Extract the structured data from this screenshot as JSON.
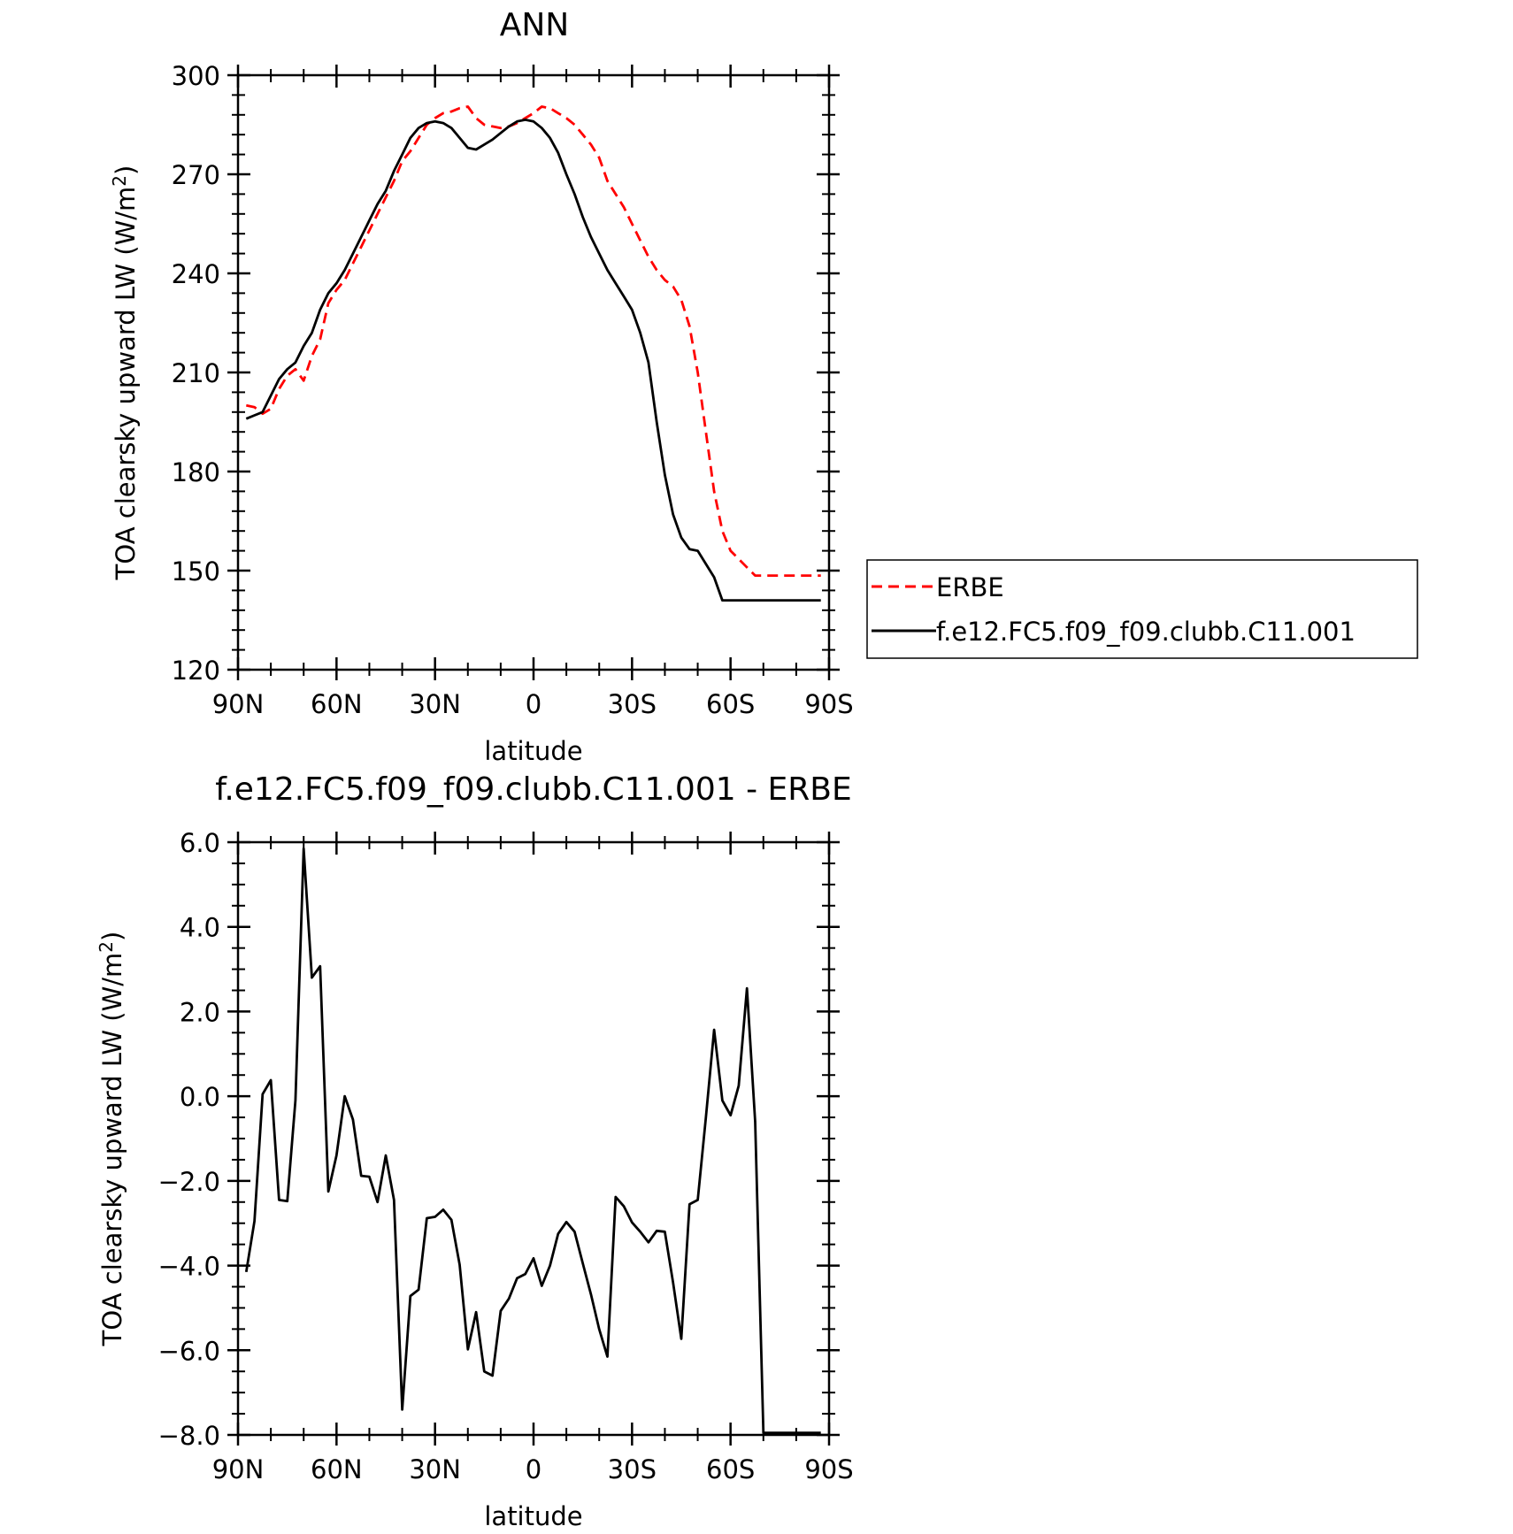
{
  "chart_data": [
    {
      "type": "line",
      "title": "ANN",
      "xlabel": "latitude",
      "ylabel": "TOA clearsky upward LW (W/m²)",
      "xlim": [
        90,
        -90
      ],
      "ylim": [
        120,
        300
      ],
      "xticks": [
        90,
        60,
        30,
        0,
        -30,
        -60,
        -90
      ],
      "xticklabels": [
        "90N",
        "60N",
        "30N",
        "0",
        "30S",
        "60S",
        "90S"
      ],
      "yticks": [
        120,
        150,
        180,
        210,
        240,
        270,
        300
      ],
      "yticklabels": [
        "120",
        "150",
        "180",
        "210",
        "240",
        "270",
        "300"
      ],
      "grid": false,
      "legend": "right",
      "series": [
        {
          "name": "ERBE",
          "color": "#ff0000",
          "dash": "dashed",
          "x": [
            87.5,
            85,
            82.5,
            80,
            77.5,
            75,
            72.5,
            70,
            67.5,
            65,
            62.5,
            60,
            57.5,
            55,
            52.5,
            50,
            47.5,
            45,
            42.5,
            40,
            37.5,
            35,
            32.5,
            30,
            27.5,
            25,
            22.5,
            20,
            17.5,
            15,
            12.5,
            10,
            7.5,
            5,
            2.5,
            0,
            -2.5,
            -5,
            -7.5,
            -10,
            -12.5,
            -15,
            -17.5,
            -20,
            -22.5,
            -25,
            -27.5,
            -30,
            -32.5,
            -35,
            -37.5,
            -40,
            -42.5,
            -45,
            -47.5,
            -50,
            -52.5,
            -55,
            -57.5,
            -60,
            -62.5,
            -65,
            -67.5,
            -70,
            -72.5,
            -75,
            -77.5,
            -80,
            -82.5,
            -85,
            -87.5
          ],
          "y": [
            200,
            199.5,
            197.5,
            199,
            205,
            209,
            211,
            207.5,
            215,
            220,
            231,
            235,
            238,
            243,
            248,
            253,
            258,
            263,
            268,
            274,
            277,
            281,
            285,
            287,
            288.5,
            289,
            290,
            290.5,
            287,
            285,
            284.5,
            284,
            284.5,
            285.5,
            287,
            288.5,
            290.5,
            290,
            288.5,
            287,
            285,
            282,
            279,
            275,
            268,
            264,
            260,
            255,
            250,
            245,
            241,
            238,
            236,
            232,
            224,
            210,
            192,
            174,
            162,
            156,
            153.5,
            151,
            148.5,
            148.5,
            148.5,
            148.5,
            148.5,
            148.5,
            148.5,
            148.5,
            148.5
          ]
        },
        {
          "name": "f.e12.FC5.f09_f09.clubb.C11.001",
          "color": "#000000",
          "dash": "solid",
          "x": [
            87.5,
            85,
            82.5,
            80,
            77.5,
            75,
            72.5,
            70,
            67.5,
            65,
            62.5,
            60,
            57.5,
            55,
            52.5,
            50,
            47.5,
            45,
            42.5,
            40,
            37.5,
            35,
            32.5,
            30,
            27.5,
            25,
            22.5,
            20,
            17.5,
            15,
            12.5,
            10,
            7.5,
            5,
            2.5,
            0,
            -2.5,
            -5,
            -7.5,
            -10,
            -12.5,
            -15,
            -17.5,
            -20,
            -22.5,
            -25,
            -27.5,
            -30,
            -32.5,
            -35,
            -37.5,
            -40,
            -42.5,
            -45,
            -47.5,
            -50,
            -52.5,
            -55,
            -57.5,
            -60,
            -62.5,
            -65,
            -67.5,
            -70,
            -72.5,
            -75,
            -77.5,
            -80,
            -82.5,
            -85,
            -87.5
          ],
          "y": [
            196,
            197,
            198,
            203,
            208,
            211,
            213,
            218,
            222,
            229,
            234,
            237,
            241,
            246,
            251,
            256,
            261,
            265,
            271,
            276,
            281,
            284,
            285.5,
            286,
            285.5,
            284,
            281,
            278,
            277.5,
            279,
            280.5,
            282.5,
            284.5,
            286,
            286.5,
            286,
            284,
            281,
            276.5,
            270,
            264,
            257,
            251,
            246,
            241,
            237,
            233,
            229,
            222,
            213,
            195,
            179,
            167,
            160,
            156.5,
            156,
            152,
            148,
            141,
            141,
            141,
            141,
            141,
            141,
            141,
            141,
            141,
            141,
            141,
            141,
            141
          ]
        }
      ]
    },
    {
      "type": "line",
      "title": "f.e12.FC5.f09_f09.clubb.C11.001 - ERBE",
      "xlabel": "latitude",
      "ylabel": "TOA clearsky upward LW (W/m²)",
      "xlim": [
        90,
        -90
      ],
      "ylim": [
        -8.0,
        6.0
      ],
      "xticks": [
        90,
        60,
        30,
        0,
        -30,
        -60,
        -90
      ],
      "xticklabels": [
        "90N",
        "60N",
        "30N",
        "0",
        "30S",
        "60S",
        "90S"
      ],
      "yticks": [
        -8.0,
        -6.0,
        -4.0,
        -2.0,
        0.0,
        2.0,
        4.0,
        6.0
      ],
      "yticklabels": [
        "-8.0",
        "-6.0",
        "-4.0",
        "-2.0",
        "0.0",
        "2.0",
        "4.0",
        "6.0"
      ],
      "grid": false,
      "series": [
        {
          "color": "#000000",
          "dash": "solid",
          "x": [
            87.5,
            85,
            82.5,
            80,
            77.5,
            75,
            72.5,
            70,
            67.5,
            65,
            62.5,
            60,
            57.5,
            55,
            52.5,
            50,
            47.5,
            45,
            42.5,
            40,
            37.5,
            35,
            32.5,
            30,
            27.5,
            25,
            22.5,
            20,
            17.5,
            15,
            12.5,
            10,
            7.5,
            5,
            2.5,
            0,
            -2.5,
            -5,
            -7.5,
            -10,
            -12.5,
            -15,
            -17.5,
            -20,
            -22.5,
            -25,
            -27.5,
            -30,
            -32.5,
            -35,
            -37.5,
            -40,
            -42.5,
            -45,
            -47.5,
            -50,
            -52.5,
            -55,
            -57.5,
            -60,
            -62.5,
            -65,
            -67.5,
            -70,
            -72.5,
            -75,
            -77.5,
            -80,
            -82.5,
            -85,
            -87.5
          ],
          "y": [
            -4.15,
            -2.95,
            0.05,
            0.38,
            -2.45,
            -2.48,
            -0.1,
            5.85,
            2.8,
            3.07,
            -2.25,
            -1.4,
            0.0,
            -0.55,
            -1.88,
            -1.9,
            -2.5,
            -1.4,
            -2.45,
            -7.4,
            -4.72,
            -4.57,
            -2.88,
            -2.85,
            -2.68,
            -2.92,
            -3.98,
            -5.98,
            -5.1,
            -6.5,
            -6.6,
            -5.07,
            -4.78,
            -4.3,
            -4.2,
            -3.83,
            -4.48,
            -4.0,
            -3.25,
            -2.97,
            -3.2,
            -3.95,
            -4.68,
            -5.5,
            -6.15,
            -2.38,
            -2.6,
            -2.98,
            -3.2,
            -3.45,
            -3.18,
            -3.2,
            -4.4,
            -5.73,
            -2.55,
            -2.45,
            -0.5,
            1.57,
            -0.1,
            -0.45,
            0.25,
            2.55,
            -0.6,
            -7.95,
            -7.95,
            -7.95,
            -7.95,
            -7.95,
            -7.95,
            -7.95,
            -7.95
          ]
        }
      ]
    }
  ]
}
